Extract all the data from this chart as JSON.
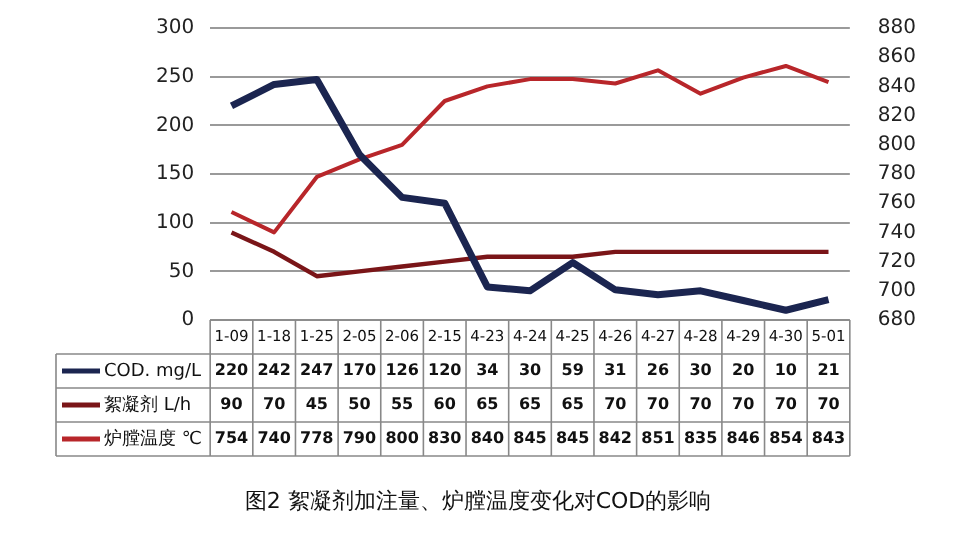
{
  "chart_data": {
    "type": "line",
    "title": "图2  絮凝剂加注量、炉膛温度变化对COD的影响",
    "categories": [
      "1-09",
      "1-18",
      "1-25",
      "2-05",
      "2-06",
      "2-15",
      "4-23",
      "4-24",
      "4-25",
      "4-26",
      "4-27",
      "4-28",
      "4-29",
      "4-30",
      "5-01"
    ],
    "series": [
      {
        "name": "COD. mg/L",
        "color": "#1b2550",
        "values": [
          220,
          242,
          247,
          170,
          126,
          120,
          34,
          30,
          59,
          31,
          26,
          30,
          20,
          10,
          21
        ]
      },
      {
        "name": "絮凝剂 L/h",
        "color": "#7a1518",
        "values": [
          90,
          70,
          45,
          50,
          55,
          60,
          65,
          65,
          65,
          70,
          70,
          70,
          70,
          70,
          70
        ]
      },
      {
        "name": "炉膛温度 ℃",
        "color": "#b8262a",
        "axis": "y2",
        "values": [
          754,
          740,
          778,
          790,
          800,
          830,
          840,
          845,
          845,
          842,
          851,
          835,
          846,
          854,
          843
        ]
      }
    ],
    "ylim": [
      0,
      300
    ],
    "yticks": [
      0,
      50,
      100,
      150,
      200,
      250,
      300
    ],
    "y2lim": [
      680,
      880
    ],
    "y2ticks": [
      680,
      700,
      720,
      740,
      760,
      780,
      800,
      820,
      840,
      860,
      880
    ],
    "grid": "y",
    "data_labels": true,
    "legend": "bottom",
    "marker": "none"
  }
}
